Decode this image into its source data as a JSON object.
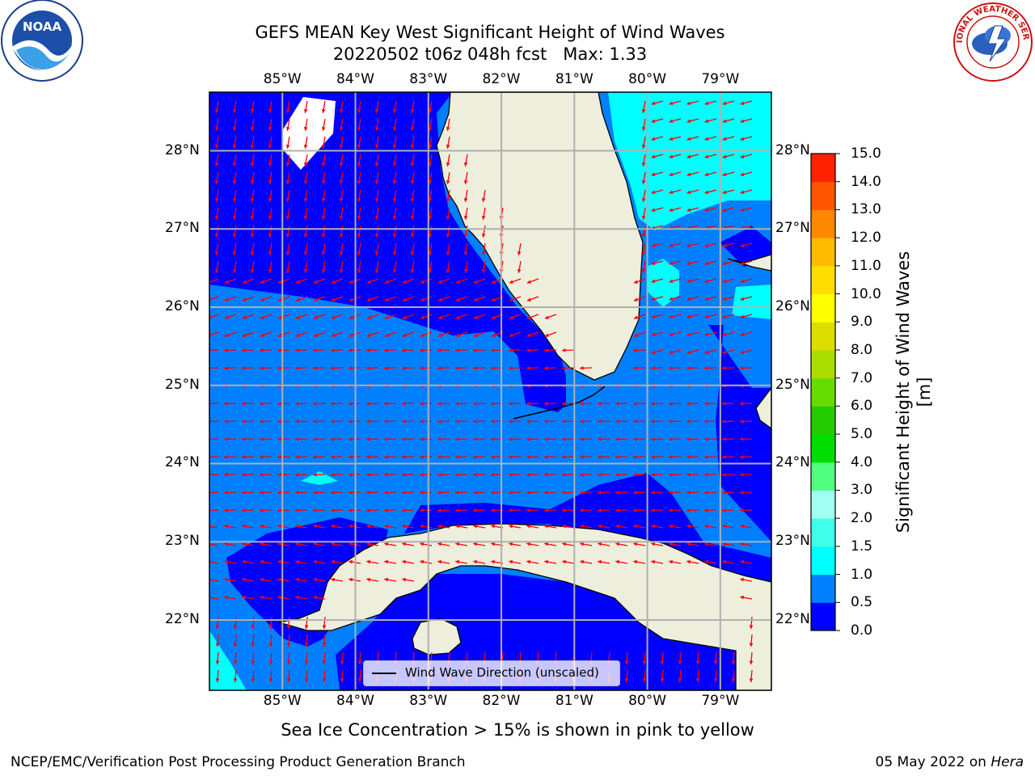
{
  "title": {
    "line1": "GEFS MEAN Key West Significant Height of Wind Waves",
    "line2": "20220502 t06z 048h fcst   Max: 1.33"
  },
  "map": {
    "lon_labels": [
      "85°W",
      "84°W",
      "83°W",
      "82°W",
      "81°W",
      "80°W",
      "79°W"
    ],
    "lat_labels": [
      "28°N",
      "27°N",
      "26°N",
      "25°N",
      "24°N",
      "23°N",
      "22°N"
    ],
    "lon_values": [
      -85,
      -84,
      -83,
      -82,
      -81,
      -80,
      -79
    ],
    "lat_values": [
      28,
      27,
      26,
      25,
      24,
      23,
      22
    ],
    "extent": {
      "lon_min": -86,
      "lon_max": -78.3,
      "lat_min": 21.1,
      "lat_max": 28.75
    },
    "land_color": "#eeeedd",
    "arrow_color": "#ff0000",
    "grid": true
  },
  "colorbar": {
    "label": "Significant Height of Wind Waves [m]",
    "ticks": [
      "15.0",
      "14.0",
      "13.0",
      "12.0",
      "11.0",
      "10.0",
      "9.0",
      "8.0",
      "7.0",
      "6.0",
      "5.0",
      "4.0",
      "3.0",
      "2.0",
      "1.5",
      "1.0",
      "0.5",
      "0.0"
    ],
    "colors": [
      "#0000ff",
      "#0080ff",
      "#00ffff",
      "#40ffea",
      "#a0fff0",
      "#50ff80",
      "#00dd00",
      "#22cc00",
      "#66dd00",
      "#aadd00",
      "#dddd00",
      "#ffff00",
      "#ffdd00",
      "#ffbb00",
      "#ff8800",
      "#ff5500",
      "#ff2200"
    ]
  },
  "legend": {
    "label": "Wind Wave Direction (unscaled)"
  },
  "bottom_note": "Sea Ice Concentration > 15% is shown in pink to yellow",
  "footer": {
    "left": "NCEP/EMC/Verification Post Processing Product Generation Branch",
    "right_date": "05 May 2022 on",
    "right_host": "Hera"
  },
  "logos": {
    "noaa": "NOAA",
    "nws": "NATIONAL WEATHER SERVICE"
  }
}
